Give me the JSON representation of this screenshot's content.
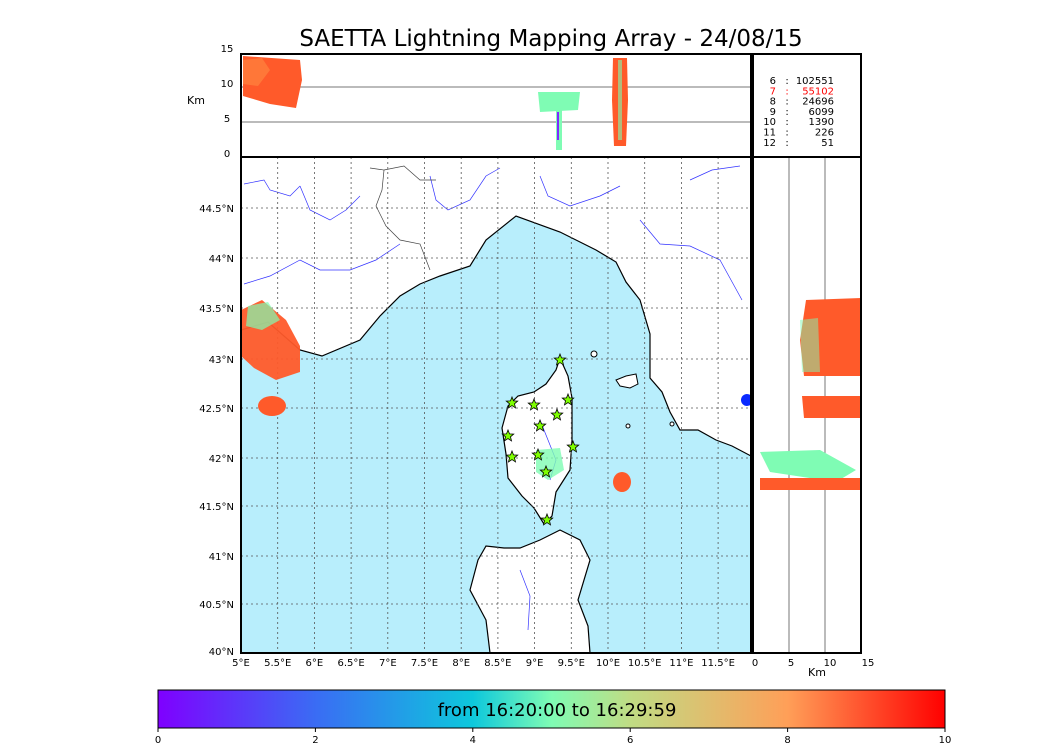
{
  "title": "SAETTA Lightning Mapping Array - 24/08/15",
  "top_panel": {
    "ylabel": "Km",
    "yticks": [
      "15",
      "10",
      "5",
      "0"
    ],
    "legend": [
      {
        "station": "6",
        "count": "102551",
        "color": "#000000"
      },
      {
        "station": "7",
        "count": "55102",
        "color": "#ff0000"
      },
      {
        "station": "8",
        "count": "24696",
        "color": "#000000"
      },
      {
        "station": "9",
        "count": "6099",
        "color": "#000000"
      },
      {
        "station": "10",
        "count": "1390",
        "color": "#000000"
      },
      {
        "station": "11",
        "count": "226",
        "color": "#000000"
      },
      {
        "station": "12",
        "count": "51",
        "color": "#000000"
      }
    ]
  },
  "map_panel": {
    "lon_ticks": [
      "5°E",
      "5.5°E",
      "6°E",
      "6.5°E",
      "7°E",
      "7.5°E",
      "8°E",
      "8.5°E",
      "9°E",
      "9.5°E",
      "10°E",
      "10.5°E",
      "11°E",
      "11.5°E"
    ],
    "lat_ticks": [
      "44.5°N",
      "44°N",
      "43.5°N",
      "43°N",
      "42.5°N",
      "42°N",
      "41.5°N",
      "41°N",
      "40.5°N",
      "40°N"
    ],
    "sea_color": "#b8eefc",
    "stations_color": "#7fff00"
  },
  "right_panel": {
    "xlabel": "Km",
    "xticks": [
      "0",
      "5",
      "10",
      "15"
    ]
  },
  "colorbar": {
    "label": "from 16:20:00 to 16:29:59",
    "ticks": [
      "0",
      "2",
      "4",
      "6",
      "8",
      "10"
    ],
    "colormap": "rainbow"
  }
}
